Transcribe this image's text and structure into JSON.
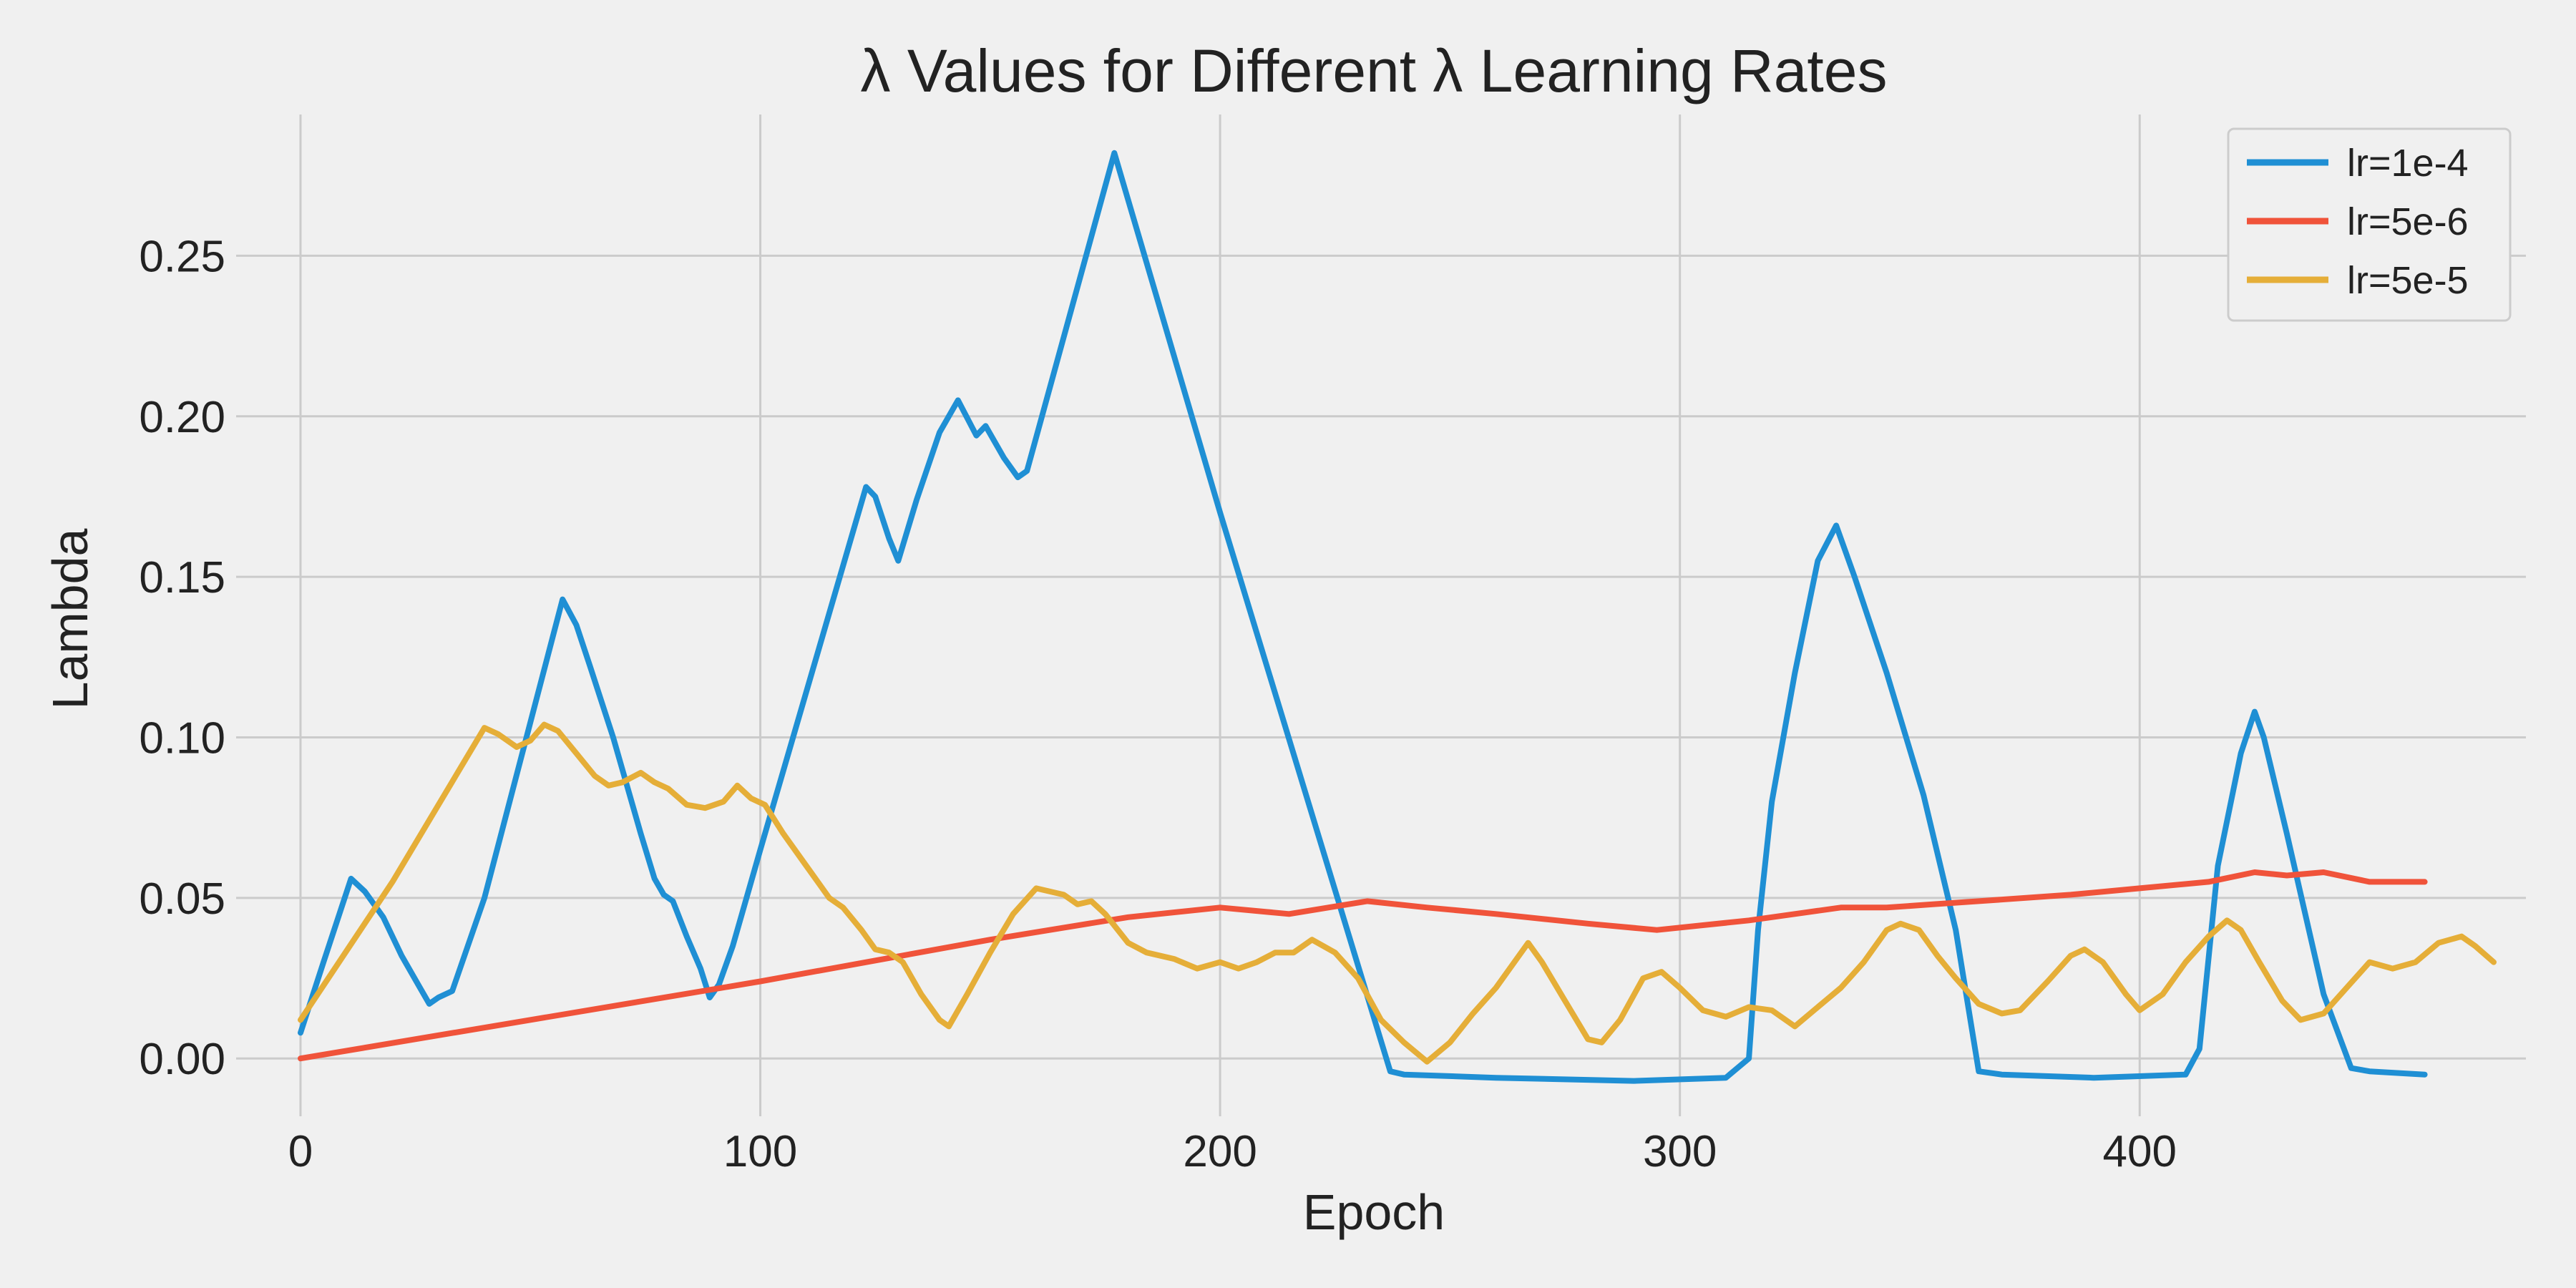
{
  "chart_data": {
    "type": "line",
    "title": "λ Values for Different λ Learning Rates",
    "xlabel": "Epoch",
    "ylabel": "Lambda",
    "xlim": [
      -14,
      484
    ],
    "ylim": [
      -0.018,
      0.294
    ],
    "x_ticks": [
      0,
      100,
      200,
      300,
      400
    ],
    "x_tick_labels": [
      "0",
      "100",
      "200",
      "300",
      "400"
    ],
    "y_ticks": [
      0,
      0.05,
      0.1,
      0.15,
      0.2,
      0.25
    ],
    "y_tick_labels": [
      "0.00",
      "0.05",
      "0.10",
      "0.15",
      "0.20",
      "0.25"
    ],
    "grid": true,
    "legend_position": "top-right",
    "series": [
      {
        "name": "lr=1e-4",
        "color": "#1f8fd4",
        "points": [
          [
            0,
            0.008
          ],
          [
            5,
            0.03
          ],
          [
            11,
            0.056
          ],
          [
            14,
            0.052
          ],
          [
            18,
            0.044
          ],
          [
            22,
            0.032
          ],
          [
            26,
            0.022
          ],
          [
            28,
            0.017
          ],
          [
            30,
            0.019
          ],
          [
            33,
            0.021
          ],
          [
            40,
            0.05
          ],
          [
            57,
            0.143
          ],
          [
            60,
            0.135
          ],
          [
            63,
            0.122
          ],
          [
            68,
            0.1
          ],
          [
            71,
            0.085
          ],
          [
            74,
            0.07
          ],
          [
            77,
            0.056
          ],
          [
            79,
            0.051
          ],
          [
            81,
            0.049
          ],
          [
            84,
            0.038
          ],
          [
            87,
            0.028
          ],
          [
            89,
            0.019
          ],
          [
            91,
            0.023
          ],
          [
            94,
            0.035
          ],
          [
            100,
            0.065
          ],
          [
            123,
            0.178
          ],
          [
            125,
            0.175
          ],
          [
            128,
            0.162
          ],
          [
            130,
            0.155
          ],
          [
            134,
            0.174
          ],
          [
            139,
            0.195
          ],
          [
            143,
            0.205
          ],
          [
            147,
            0.194
          ],
          [
            149,
            0.197
          ],
          [
            153,
            0.187
          ],
          [
            156,
            0.181
          ],
          [
            158,
            0.183
          ],
          [
            177,
            0.282
          ],
          [
            200,
            0.17
          ],
          [
            237,
            -0.004
          ],
          [
            240,
            -0.005
          ],
          [
            260,
            -0.006
          ],
          [
            290,
            -0.007
          ],
          [
            310,
            -0.006
          ],
          [
            315,
            0.0
          ],
          [
            317,
            0.04
          ],
          [
            320,
            0.08
          ],
          [
            325,
            0.12
          ],
          [
            330,
            0.155
          ],
          [
            334,
            0.166
          ],
          [
            338,
            0.15
          ],
          [
            345,
            0.12
          ],
          [
            353,
            0.082
          ],
          [
            360,
            0.04
          ],
          [
            365,
            -0.004
          ],
          [
            370,
            -0.005
          ],
          [
            390,
            -0.006
          ],
          [
            410,
            -0.005
          ],
          [
            413,
            0.003
          ],
          [
            417,
            0.06
          ],
          [
            422,
            0.095
          ],
          [
            425,
            0.108
          ],
          [
            427,
            0.1
          ],
          [
            432,
            0.07
          ],
          [
            440,
            0.02
          ],
          [
            446,
            -0.003
          ],
          [
            450,
            -0.004
          ],
          [
            462,
            -0.005
          ]
        ]
      },
      {
        "name": "lr=5e-6",
        "color": "#f0533a",
        "points": [
          [
            0,
            0.0
          ],
          [
            100,
            0.024
          ],
          [
            150,
            0.037
          ],
          [
            180,
            0.044
          ],
          [
            200,
            0.047
          ],
          [
            215,
            0.045
          ],
          [
            232,
            0.049
          ],
          [
            245,
            0.047
          ],
          [
            260,
            0.045
          ],
          [
            280,
            0.042
          ],
          [
            295,
            0.04
          ],
          [
            315,
            0.043
          ],
          [
            335,
            0.047
          ],
          [
            345,
            0.047
          ],
          [
            355,
            0.048
          ],
          [
            365,
            0.049
          ],
          [
            385,
            0.051
          ],
          [
            400,
            0.053
          ],
          [
            415,
            0.055
          ],
          [
            425,
            0.058
          ],
          [
            432,
            0.057
          ],
          [
            440,
            0.058
          ],
          [
            450,
            0.055
          ],
          [
            462,
            0.055
          ]
        ]
      },
      {
        "name": "lr=5e-5",
        "color": "#e5ae38",
        "points": [
          [
            0,
            0.012
          ],
          [
            20,
            0.055
          ],
          [
            40,
            0.103
          ],
          [
            43,
            0.101
          ],
          [
            47,
            0.097
          ],
          [
            50,
            0.099
          ],
          [
            53,
            0.104
          ],
          [
            56,
            0.102
          ],
          [
            60,
            0.095
          ],
          [
            64,
            0.088
          ],
          [
            67,
            0.085
          ],
          [
            70,
            0.086
          ],
          [
            74,
            0.089
          ],
          [
            77,
            0.086
          ],
          [
            80,
            0.084
          ],
          [
            84,
            0.079
          ],
          [
            88,
            0.078
          ],
          [
            92,
            0.08
          ],
          [
            95,
            0.085
          ],
          [
            98,
            0.081
          ],
          [
            101,
            0.079
          ],
          [
            105,
            0.07
          ],
          [
            110,
            0.06
          ],
          [
            115,
            0.05
          ],
          [
            118,
            0.047
          ],
          [
            122,
            0.04
          ],
          [
            125,
            0.034
          ],
          [
            128,
            0.033
          ],
          [
            131,
            0.03
          ],
          [
            135,
            0.02
          ],
          [
            139,
            0.012
          ],
          [
            141,
            0.01
          ],
          [
            145,
            0.02
          ],
          [
            150,
            0.033
          ],
          [
            155,
            0.045
          ],
          [
            160,
            0.053
          ],
          [
            163,
            0.052
          ],
          [
            166,
            0.051
          ],
          [
            169,
            0.048
          ],
          [
            172,
            0.049
          ],
          [
            175,
            0.045
          ],
          [
            180,
            0.036
          ],
          [
            184,
            0.033
          ],
          [
            190,
            0.031
          ],
          [
            195,
            0.028
          ],
          [
            200,
            0.03
          ],
          [
            204,
            0.028
          ],
          [
            208,
            0.03
          ],
          [
            212,
            0.033
          ],
          [
            216,
            0.033
          ],
          [
            220,
            0.037
          ],
          [
            225,
            0.033
          ],
          [
            230,
            0.025
          ],
          [
            235,
            0.012
          ],
          [
            240,
            0.005
          ],
          [
            245,
            -0.001
          ],
          [
            250,
            0.005
          ],
          [
            255,
            0.014
          ],
          [
            260,
            0.022
          ],
          [
            263,
            0.028
          ],
          [
            267,
            0.036
          ],
          [
            270,
            0.03
          ],
          [
            275,
            0.018
          ],
          [
            280,
            0.006
          ],
          [
            283,
            0.005
          ],
          [
            287,
            0.012
          ],
          [
            292,
            0.025
          ],
          [
            296,
            0.027
          ],
          [
            300,
            0.022
          ],
          [
            305,
            0.015
          ],
          [
            310,
            0.013
          ],
          [
            315,
            0.016
          ],
          [
            320,
            0.015
          ],
          [
            325,
            0.01
          ],
          [
            330,
            0.016
          ],
          [
            335,
            0.022
          ],
          [
            340,
            0.03
          ],
          [
            345,
            0.04
          ],
          [
            348,
            0.042
          ],
          [
            352,
            0.04
          ],
          [
            356,
            0.032
          ],
          [
            360,
            0.025
          ],
          [
            365,
            0.017
          ],
          [
            370,
            0.014
          ],
          [
            374,
            0.015
          ],
          [
            380,
            0.024
          ],
          [
            385,
            0.032
          ],
          [
            388,
            0.034
          ],
          [
            392,
            0.03
          ],
          [
            397,
            0.02
          ],
          [
            400,
            0.015
          ],
          [
            405,
            0.02
          ],
          [
            410,
            0.03
          ],
          [
            415,
            0.038
          ],
          [
            419,
            0.043
          ],
          [
            422,
            0.04
          ],
          [
            426,
            0.03
          ],
          [
            431,
            0.018
          ],
          [
            435,
            0.012
          ],
          [
            440,
            0.014
          ],
          [
            445,
            0.022
          ],
          [
            450,
            0.03
          ],
          [
            455,
            0.028
          ],
          [
            460,
            0.03
          ],
          [
            465,
            0.036
          ],
          [
            470,
            0.038
          ],
          [
            473,
            0.035
          ],
          [
            477,
            0.03
          ]
        ]
      }
    ]
  }
}
